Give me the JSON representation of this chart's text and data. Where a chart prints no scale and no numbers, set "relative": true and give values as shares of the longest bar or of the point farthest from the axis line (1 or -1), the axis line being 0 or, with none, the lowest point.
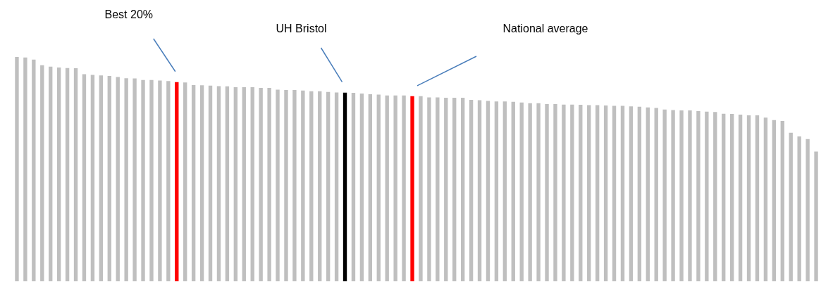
{
  "chart_data": {
    "type": "bar",
    "relative": true,
    "categories": [
      null,
      null,
      null,
      null,
      null,
      null,
      null,
      null,
      null,
      null,
      null,
      null,
      null,
      null,
      null,
      null,
      null,
      null,
      null,
      null,
      null,
      null,
      null,
      null,
      null,
      null,
      null,
      null,
      null,
      null,
      null,
      null,
      null,
      null,
      null,
      null,
      null,
      null,
      null,
      null,
      null,
      null,
      null,
      null,
      null,
      null,
      null,
      null,
      null,
      null,
      null,
      null,
      null,
      null,
      null,
      null,
      null,
      null,
      null,
      null,
      null,
      null,
      null,
      null,
      null,
      null,
      null,
      null,
      null,
      null,
      null,
      null,
      null,
      null,
      null,
      null,
      null,
      null,
      null,
      null,
      null,
      null,
      null,
      null,
      null,
      null,
      null,
      null,
      null,
      null,
      null,
      null,
      null,
      null,
      null,
      null
    ],
    "values": [
      1,
      0.998,
      0.988,
      0.963,
      0.957,
      0.953,
      0.951,
      0.95,
      0.923,
      0.92,
      0.918,
      0.915,
      0.911,
      0.905,
      0.904,
      0.897,
      0.897,
      0.895,
      0.893,
      0.888,
      0.886,
      0.875,
      0.874,
      0.872,
      0.87,
      0.869,
      0.865,
      0.865,
      0.865,
      0.862,
      0.862,
      0.854,
      0.853,
      0.853,
      0.85,
      0.847,
      0.847,
      0.844,
      0.842,
      0.841,
      0.84,
      0.837,
      0.834,
      0.832,
      0.828,
      0.828,
      0.828,
      0.825,
      0.825,
      0.82,
      0.82,
      0.818,
      0.818,
      0.818,
      0.809,
      0.807,
      0.804,
      0.802,
      0.802,
      0.8,
      0.797,
      0.794,
      0.794,
      0.79,
      0.79,
      0.788,
      0.788,
      0.787,
      0.785,
      0.785,
      0.784,
      0.782,
      0.782,
      0.78,
      0.778,
      0.775,
      0.773,
      0.766,
      0.763,
      0.762,
      0.762,
      0.759,
      0.756,
      0.755,
      0.747,
      0.746,
      0.743,
      0.74,
      0.74,
      0.73,
      0.719,
      0.715,
      0.662,
      0.646,
      0.634,
      0.578
    ],
    "colors": [
      "#bfbfbf",
      "#bfbfbf",
      "#bfbfbf",
      "#bfbfbf",
      "#bfbfbf",
      "#bfbfbf",
      "#bfbfbf",
      "#bfbfbf",
      "#bfbfbf",
      "#bfbfbf",
      "#bfbfbf",
      "#bfbfbf",
      "#bfbfbf",
      "#bfbfbf",
      "#bfbfbf",
      "#bfbfbf",
      "#bfbfbf",
      "#bfbfbf",
      "#bfbfbf",
      "#ff0000",
      "#bfbfbf",
      "#bfbfbf",
      "#bfbfbf",
      "#bfbfbf",
      "#bfbfbf",
      "#bfbfbf",
      "#bfbfbf",
      "#bfbfbf",
      "#bfbfbf",
      "#bfbfbf",
      "#bfbfbf",
      "#bfbfbf",
      "#bfbfbf",
      "#bfbfbf",
      "#bfbfbf",
      "#bfbfbf",
      "#bfbfbf",
      "#bfbfbf",
      "#bfbfbf",
      "#000000",
      "#bfbfbf",
      "#bfbfbf",
      "#bfbfbf",
      "#bfbfbf",
      "#bfbfbf",
      "#bfbfbf",
      "#bfbfbf",
      "#ff0000",
      "#bfbfbf",
      "#bfbfbf",
      "#bfbfbf",
      "#bfbfbf",
      "#bfbfbf",
      "#bfbfbf",
      "#bfbfbf",
      "#bfbfbf",
      "#bfbfbf",
      "#bfbfbf",
      "#bfbfbf",
      "#bfbfbf",
      "#bfbfbf",
      "#bfbfbf",
      "#bfbfbf",
      "#bfbfbf",
      "#bfbfbf",
      "#bfbfbf",
      "#bfbfbf",
      "#bfbfbf",
      "#bfbfbf",
      "#bfbfbf",
      "#bfbfbf",
      "#bfbfbf",
      "#bfbfbf",
      "#bfbfbf",
      "#bfbfbf",
      "#bfbfbf",
      "#bfbfbf",
      "#bfbfbf",
      "#bfbfbf",
      "#bfbfbf",
      "#bfbfbf",
      "#bfbfbf",
      "#bfbfbf",
      "#bfbfbf",
      "#bfbfbf",
      "#bfbfbf",
      "#bfbfbf",
      "#bfbfbf",
      "#bfbfbf",
      "#bfbfbf",
      "#bfbfbf",
      "#bfbfbf",
      "#bfbfbf",
      "#bfbfbf",
      "#bfbfbf",
      "#bfbfbf"
    ],
    "annotations": [
      "Best 20%",
      "UH Bristol",
      "National average"
    ]
  }
}
